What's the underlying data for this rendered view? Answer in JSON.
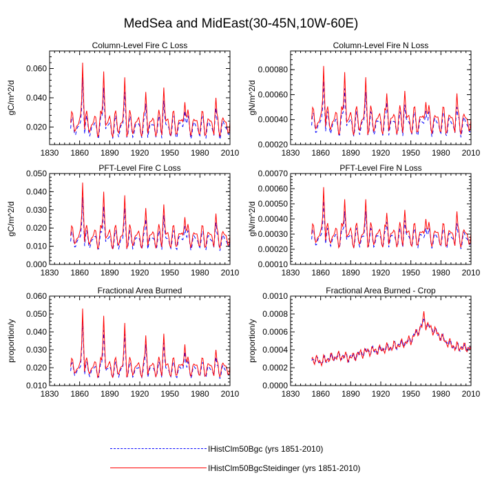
{
  "title": "MedSea and MidEast(30-45N,10W-60E)",
  "legend": [
    {
      "label": "IHistClm50Bgc (yrs 1851-2010)",
      "color": "#0000ff",
      "dash": "dashed"
    },
    {
      "label": "IHistClm50BgcSteidinger (yrs 1851-2010)",
      "color": "#ff0000",
      "dash": "solid"
    }
  ],
  "chart_data": [
    {
      "type": "line",
      "title": "Column-Level Fire C Loss",
      "xlabel": "",
      "ylabel": "gC/m^2/d",
      "xlim": [
        1830,
        2010
      ],
      "ylim": [
        0.008,
        0.072
      ],
      "xticks": [
        "1830",
        "1860",
        "1890",
        "1920",
        "1950",
        "1980",
        "2010"
      ],
      "yticks": [
        {
          "v": 0.02,
          "label": "0.020"
        },
        {
          "v": 0.04,
          "label": "0.040"
        },
        {
          "v": 0.06,
          "label": "0.060"
        }
      ],
      "peaks": [
        [
          1863,
          0.064,
          0.054
        ],
        [
          1884,
          0.058,
          0.047
        ],
        [
          1905,
          0.054,
          0.044
        ],
        [
          1926,
          0.044,
          0.036
        ],
        [
          1944,
          0.047,
          0.038
        ],
        [
          1965,
          0.037,
          0.031
        ],
        [
          1996,
          0.04,
          0.033
        ]
      ],
      "series": [
        {
          "name": "IHistClm50Bgc (yrs 1851-2010)",
          "baseline": 0.0195,
          "amplitude": 0.0095,
          "peak_index": 2
        },
        {
          "name": "IHistClm50BgcSteidinger (yrs 1851-2010)",
          "baseline": 0.022,
          "amplitude": 0.011,
          "peak_index": 1
        }
      ]
    },
    {
      "type": "line",
      "title": "Column-Level Fire N Loss",
      "xlabel": "",
      "ylabel": "gN/m^2/d",
      "xlim": [
        1830,
        2010
      ],
      "ylim": [
        0.0002,
        0.00095
      ],
      "xticks": [
        "1830",
        "1860",
        "1890",
        "1920",
        "1950",
        "1980",
        "2010"
      ],
      "yticks": [
        {
          "v": 0.0002,
          "label": "0.00020"
        },
        {
          "v": 0.0004,
          "label": "0.00040"
        },
        {
          "v": 0.0006,
          "label": "0.00060"
        },
        {
          "v": 0.0008,
          "label": "0.00080"
        }
      ],
      "peaks": [
        [
          1863,
          0.00083,
          0.00071
        ],
        [
          1884,
          0.00078,
          0.00065
        ],
        [
          1905,
          0.00074,
          0.00062
        ],
        [
          1926,
          0.00061,
          0.00054
        ],
        [
          1944,
          0.00063,
          0.00052
        ],
        [
          1965,
          0.00054,
          0.00047
        ],
        [
          1996,
          0.00061,
          0.0005
        ]
      ],
      "series": [
        {
          "name": "IHistClm50Bgc (yrs 1851-2010)",
          "baseline": 0.00036,
          "amplitude": 0.00012,
          "peak_index": 2
        },
        {
          "name": "IHistClm50BgcSteidinger (yrs 1851-2010)",
          "baseline": 0.00039,
          "amplitude": 0.00014,
          "peak_index": 1
        }
      ]
    },
    {
      "type": "line",
      "title": "PFT-Level Fire C Loss",
      "xlabel": "",
      "ylabel": "gC/m^2/d",
      "xlim": [
        1830,
        2010
      ],
      "ylim": [
        0.0,
        0.05
      ],
      "xticks": [
        "1830",
        "1860",
        "1890",
        "1920",
        "1950",
        "1980",
        "2010"
      ],
      "yticks": [
        {
          "v": 0.0,
          "label": "0.000"
        },
        {
          "v": 0.01,
          "label": "0.010"
        },
        {
          "v": 0.02,
          "label": "0.020"
        },
        {
          "v": 0.03,
          "label": "0.030"
        },
        {
          "v": 0.04,
          "label": "0.040"
        },
        {
          "v": 0.05,
          "label": "0.050"
        }
      ],
      "peaks": [
        [
          1863,
          0.045,
          0.037
        ],
        [
          1884,
          0.04,
          0.032
        ],
        [
          1905,
          0.038,
          0.031
        ],
        [
          1926,
          0.031,
          0.025
        ],
        [
          1944,
          0.033,
          0.027
        ],
        [
          1965,
          0.026,
          0.021
        ],
        [
          1996,
          0.028,
          0.023
        ]
      ],
      "series": [
        {
          "name": "IHistClm50Bgc (yrs 1851-2010)",
          "baseline": 0.013,
          "amplitude": 0.0065,
          "peak_index": 2
        },
        {
          "name": "IHistClm50BgcSteidinger (yrs 1851-2010)",
          "baseline": 0.015,
          "amplitude": 0.008,
          "peak_index": 1
        }
      ]
    },
    {
      "type": "line",
      "title": "PFT-Level Fire N Loss",
      "xlabel": "",
      "ylabel": "gN/m^2/d",
      "xlim": [
        1830,
        2010
      ],
      "ylim": [
        0.0001,
        0.0007
      ],
      "xticks": [
        "1830",
        "1860",
        "1890",
        "1920",
        "1950",
        "1980",
        "2010"
      ],
      "yticks": [
        {
          "v": 0.0001,
          "label": "0.00010"
        },
        {
          "v": 0.0002,
          "label": "0.00020"
        },
        {
          "v": 0.0003,
          "label": "0.00030"
        },
        {
          "v": 0.0004,
          "label": "0.00040"
        },
        {
          "v": 0.0005,
          "label": "0.00050"
        },
        {
          "v": 0.0006,
          "label": "0.00060"
        },
        {
          "v": 0.0007,
          "label": "0.00070"
        }
      ],
      "peaks": [
        [
          1863,
          0.00061,
          0.00052
        ],
        [
          1884,
          0.00053,
          0.00045
        ],
        [
          1905,
          0.00053,
          0.00045
        ],
        [
          1926,
          0.00044,
          0.00038
        ],
        [
          1944,
          0.00046,
          0.00039
        ],
        [
          1965,
          0.0004,
          0.00034
        ],
        [
          1996,
          0.00045,
          0.00037
        ]
      ],
      "series": [
        {
          "name": "IHistClm50Bgc (yrs 1851-2010)",
          "baseline": 0.00027,
          "amplitude": 8e-05,
          "peak_index": 2
        },
        {
          "name": "IHistClm50BgcSteidinger (yrs 1851-2010)",
          "baseline": 0.00029,
          "amplitude": 0.0001,
          "peak_index": 1
        }
      ]
    },
    {
      "type": "line",
      "title": "Fractional Area Burned",
      "xlabel": "",
      "ylabel": "proportion/y",
      "xlim": [
        1830,
        2010
      ],
      "ylim": [
        0.01,
        0.06
      ],
      "xticks": [
        "1830",
        "1860",
        "1890",
        "1920",
        "1950",
        "1980",
        "2010"
      ],
      "yticks": [
        {
          "v": 0.01,
          "label": "0.010"
        },
        {
          "v": 0.02,
          "label": "0.020"
        },
        {
          "v": 0.03,
          "label": "0.030"
        },
        {
          "v": 0.04,
          "label": "0.040"
        },
        {
          "v": 0.05,
          "label": "0.050"
        },
        {
          "v": 0.06,
          "label": "0.060"
        }
      ],
      "peaks": [
        [
          1863,
          0.053,
          0.047
        ],
        [
          1884,
          0.049,
          0.041
        ],
        [
          1905,
          0.045,
          0.039
        ],
        [
          1926,
          0.038,
          0.033
        ],
        [
          1944,
          0.039,
          0.034
        ],
        [
          1965,
          0.033,
          0.029
        ],
        [
          1996,
          0.03,
          0.026
        ]
      ],
      "series": [
        {
          "name": "IHistClm50Bgc (yrs 1851-2010)",
          "baseline": 0.0185,
          "amplitude": 0.0055,
          "peak_index": 2
        },
        {
          "name": "IHistClm50BgcSteidinger (yrs 1851-2010)",
          "baseline": 0.02,
          "amplitude": 0.0068,
          "peak_index": 1
        }
      ]
    },
    {
      "type": "line",
      "title": "Fractional Area Burned - Crop",
      "xlabel": "",
      "ylabel": "proportion/y",
      "xlim": [
        1830,
        2010
      ],
      "ylim": [
        0.0,
        0.001
      ],
      "xticks": [
        "1830",
        "1860",
        "1890",
        "1920",
        "1950",
        "1980",
        "2010"
      ],
      "yticks": [
        {
          "v": 0.0,
          "label": "0.0000"
        },
        {
          "v": 0.0002,
          "label": "0.0002"
        },
        {
          "v": 0.0004,
          "label": "0.0004"
        },
        {
          "v": 0.0006,
          "label": "0.0006"
        },
        {
          "v": 0.0008,
          "label": "0.0008"
        },
        {
          "v": 0.001,
          "label": "0.0010"
        }
      ],
      "trend": [
        [
          1851,
          0.0003
        ],
        [
          1860,
          0.00027
        ],
        [
          1870,
          0.00031
        ],
        [
          1880,
          0.00033
        ],
        [
          1890,
          0.00031
        ],
        [
          1900,
          0.00036
        ],
        [
          1910,
          0.00039
        ],
        [
          1920,
          0.0004
        ],
        [
          1930,
          0.00043
        ],
        [
          1940,
          0.00046
        ],
        [
          1950,
          0.00051
        ],
        [
          1960,
          0.00065
        ],
        [
          1965,
          0.00068
        ],
        [
          1975,
          0.0006
        ],
        [
          1985,
          0.00049
        ],
        [
          1995,
          0.00043
        ],
        [
          2010,
          0.00042
        ]
      ],
      "peaks": [
        [
          1963,
          0.00083,
          0.00076
        ]
      ],
      "series": [
        {
          "name": "IHistClm50Bgc (yrs 1851-2010)",
          "amplitude": 4e-05,
          "peak_index": 2
        },
        {
          "name": "IHistClm50BgcSteidinger (yrs 1851-2010)",
          "amplitude": 5e-05,
          "peak_index": 1
        }
      ]
    }
  ]
}
